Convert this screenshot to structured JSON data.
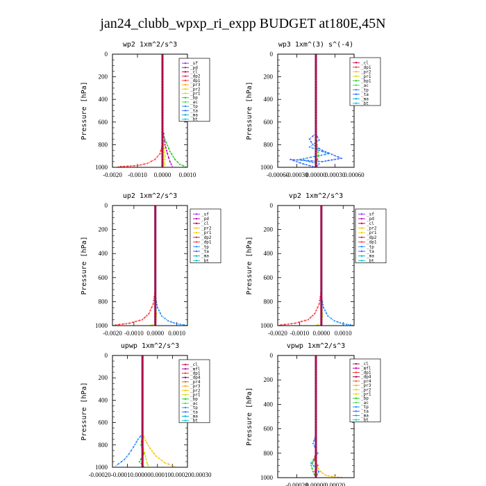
{
  "figure_title": "jan24_clubb_wpxp_ri_expp  BUDGET at180E,45N",
  "colors": {
    "_sf": "#9b30ff",
    "_pd": "#c000c0",
    "_cl": "#cc0044",
    "_dp2": "#dd2255",
    "_dp1": "#ff3333",
    "_pr3": "#ffaa00",
    "_pr2": "#ffc000",
    "_pr1": "#dddd00",
    "_bp": "#22cc22",
    "_ac": "#44dd44",
    "_tp": "#1e90ff",
    "_ta": "#3366ff",
    "_ma": "#00aaee",
    "_bt": "#00cccc",
    "_mfl": "#aa00aa",
    "_dp4": "#990033",
    "_pr4": "#ee5533",
    "_bp1": "#33cc33"
  },
  "chart_data": [
    {
      "type": "line",
      "title": "wp2   1xm^2/s^3",
      "ylabel": "Pressure [hPa]",
      "xlim": [
        -0.002,
        0.001
      ],
      "ylim": [
        1000,
        0
      ],
      "xticks": [
        "-0.0020",
        "-0.0010",
        "0.0000",
        "0.0010"
      ],
      "xtick_values": [
        -0.002,
        -0.001,
        0,
        0.001
      ],
      "yticks": [
        "0",
        "200",
        "400",
        "600",
        "800",
        "1000"
      ],
      "legend": [
        "_sf",
        "_pd",
        "_cl",
        "_dp2",
        "_dp1",
        "_pr3",
        "_pr2",
        "_pr1",
        "_bp",
        "_ac",
        "_tp",
        "_ta",
        "_ma",
        "_bt"
      ],
      "series": [
        {
          "name": "_pd",
          "x": [
            5e-05,
            0.0001,
            0.0002,
            0.0003,
            0.0004
          ],
          "y": [
            700,
            800,
            880,
            950,
            995
          ]
        },
        {
          "name": "_dp1",
          "x": [
            0,
            -0.0001,
            -0.0003,
            -0.0006,
            -0.001,
            -0.0018
          ],
          "y": [
            800,
            880,
            930,
            965,
            985,
            995
          ]
        },
        {
          "name": "_bp",
          "x": [
            0,
            0.00015,
            0.0003,
            0.0005,
            0.0007,
            0.00095
          ],
          "y": [
            700,
            780,
            860,
            930,
            975,
            995
          ]
        },
        {
          "name": "_pr1",
          "x": [
            0,
            5e-05,
            0.0001,
            8e-05,
            0.0001
          ],
          "y": [
            700,
            800,
            900,
            960,
            995
          ]
        },
        {
          "name": "_cl",
          "x": [
            0,
            0,
            0,
            0,
            0,
            0
          ],
          "y": [
            0,
            200,
            400,
            600,
            800,
            1000
          ]
        }
      ]
    },
    {
      "type": "line",
      "title": "wp3   1xm^(3) s^(-4)",
      "ylabel": "Pressure [hPa]",
      "xlim": [
        -0.0006,
        0.0006
      ],
      "ylim": [
        1000,
        0
      ],
      "xticks": [
        "-0.00060",
        "-0.00030",
        "0.00000",
        "0.00030",
        "0.00060"
      ],
      "xtick_values": [
        -0.0006,
        -0.0003,
        0,
        0.0003,
        0.0006
      ],
      "yticks": [
        "0",
        "200",
        "400",
        "600",
        "800",
        "1000"
      ],
      "legend": [
        "_cl",
        "_dp1",
        "_pr2",
        "_pr1",
        "_bp1",
        "_ac",
        "_tp",
        "_ta",
        "_ma",
        "_bt"
      ],
      "series": [
        {
          "name": "_ta",
          "x": [
            0,
            -0.0001,
            -5e-05,
            0.0001,
            0.0004,
            0.0001,
            -0.0004,
            -0.0002,
            0
          ],
          "y": [
            700,
            750,
            800,
            850,
            920,
            950,
            930,
            970,
            1000
          ]
        },
        {
          "name": "_tp",
          "x": [
            0,
            5e-05,
            -0.0001,
            0.0002,
            -0.00025,
            5e-05,
            0
          ],
          "y": [
            700,
            760,
            820,
            880,
            930,
            970,
            1000
          ]
        },
        {
          "name": "_dp1",
          "x": [
            0,
            0,
            0,
            0,
            0,
            0
          ],
          "y": [
            0,
            200,
            400,
            600,
            800,
            1000
          ]
        },
        {
          "name": "_bp1",
          "x": [
            0,
            2e-05,
            4e-05,
            1e-05,
            0
          ],
          "y": [
            700,
            800,
            900,
            960,
            1000
          ]
        }
      ]
    },
    {
      "type": "line",
      "title": "up2   1xm^2/s^3",
      "ylabel": "Pressure [hPa]",
      "xlim": [
        -0.002,
        0.0015
      ],
      "ylim": [
        1000,
        0
      ],
      "xticks": [
        "-0.0020",
        "-0.0010",
        "0.0000",
        "0.0010"
      ],
      "xtick_values": [
        -0.002,
        -0.001,
        0,
        0.001
      ],
      "yticks": [
        "0",
        "200",
        "400",
        "600",
        "800",
        "1000"
      ],
      "legend": [
        "_sf",
        "_pd",
        "_cl",
        "_pr2",
        "_pr1",
        "_dp2",
        "_dp1",
        "_tp",
        "_ta",
        "_ma",
        "_bt"
      ],
      "series": [
        {
          "name": "_dp1",
          "x": [
            0,
            -0.0001,
            -0.0003,
            -0.0006,
            -0.0012,
            -0.002
          ],
          "y": [
            700,
            820,
            900,
            950,
            980,
            998
          ]
        },
        {
          "name": "_tp",
          "x": [
            0,
            0.0001,
            0.0003,
            0.0006,
            0.001,
            0.0015
          ],
          "y": [
            750,
            850,
            920,
            960,
            985,
            998
          ]
        },
        {
          "name": "_pr1",
          "x": [
            0,
            5e-05,
            3e-05,
            0,
            -0.0003
          ],
          "y": [
            800,
            900,
            950,
            990,
            998
          ]
        },
        {
          "name": "_cl",
          "x": [
            0,
            0,
            0,
            0,
            0,
            0
          ],
          "y": [
            0,
            200,
            400,
            600,
            800,
            1000
          ]
        }
      ]
    },
    {
      "type": "line",
      "title": "vp2   1xm^2/s^3",
      "ylabel": "Pressure [hPa]",
      "xlim": [
        -0.002,
        0.0015
      ],
      "ylim": [
        1000,
        0
      ],
      "xticks": [
        "-0.0020",
        "-0.0010",
        "0.0000",
        "0.0010"
      ],
      "xtick_values": [
        -0.002,
        -0.001,
        0,
        0.001
      ],
      "yticks": [
        "0",
        "200",
        "400",
        "600",
        "800",
        "1000"
      ],
      "legend": [
        "_sf",
        "_pd",
        "_cl",
        "_pr2",
        "_pr1",
        "_dp2",
        "_dp1",
        "_tp",
        "_ta",
        "_ma",
        "_bt"
      ],
      "series": [
        {
          "name": "_dp1",
          "x": [
            0,
            -0.0001,
            -0.0003,
            -0.0006,
            -0.0012,
            -0.002
          ],
          "y": [
            700,
            820,
            900,
            950,
            980,
            998
          ]
        },
        {
          "name": "_tp",
          "x": [
            0,
            0.0001,
            0.0003,
            0.0006,
            0.001,
            0.0015
          ],
          "y": [
            750,
            850,
            920,
            960,
            985,
            998
          ]
        },
        {
          "name": "_pr1",
          "x": [
            0,
            5e-05,
            3e-05,
            0,
            -0.0003
          ],
          "y": [
            800,
            900,
            950,
            990,
            998
          ]
        },
        {
          "name": "_cl",
          "x": [
            0,
            0,
            0,
            0,
            0,
            0
          ],
          "y": [
            0,
            200,
            400,
            600,
            800,
            1000
          ]
        }
      ]
    },
    {
      "type": "line",
      "title": "upwp   1xm^2/s^3",
      "ylabel": "Pressure [hPa]",
      "xlim": [
        -0.0002,
        0.0003
      ],
      "ylim": [
        1000,
        0
      ],
      "xticks": [
        "-0.0002",
        "-0.0001",
        "0.0000",
        "0.0001",
        "0.0002",
        "0.0003"
      ],
      "xtick_values": [
        -0.0002,
        -0.0001,
        0,
        0.0001,
        0.0002,
        0.0003
      ],
      "xtick_text_joined": "-0.00020-0.00010.000000.000100.000200.00030",
      "yticks": [
        "0",
        "200",
        "400",
        "600",
        "800",
        "1000"
      ],
      "legend": [
        "_cl",
        "_mfl",
        "_dp1",
        "_dp4",
        "_pr4",
        "_pr3",
        "_pr2",
        "_pr1",
        "_bp",
        "_ac",
        "_tp",
        "_ta",
        "_ma",
        "_bt"
      ],
      "series": [
        {
          "name": "_tp",
          "x": [
            0,
            -3e-05,
            -6e-05,
            -9e-05,
            -0.00012,
            -0.00018
          ],
          "y": [
            700,
            750,
            820,
            880,
            930,
            990
          ]
        },
        {
          "name": "_pr2",
          "x": [
            0,
            2e-05,
            5e-05,
            9e-05,
            0.00015,
            0.00022
          ],
          "y": [
            700,
            760,
            830,
            900,
            960,
            995
          ]
        },
        {
          "name": "_bp",
          "x": [
            0,
            -1e-05,
            1e-05,
            -2e-05,
            1e-05
          ],
          "y": [
            700,
            800,
            880,
            950,
            995
          ]
        },
        {
          "name": "_pr1",
          "x": [
            0,
            2e-05,
            3e-05,
            4e-05
          ],
          "y": [
            800,
            900,
            960,
            995
          ]
        },
        {
          "name": "_cl",
          "x": [
            0,
            0,
            0,
            0,
            0,
            0
          ],
          "y": [
            0,
            200,
            400,
            600,
            800,
            1000
          ]
        }
      ]
    },
    {
      "type": "line",
      "title": "vpwp   1xm^2/s^3",
      "ylabel": "Pressure [hPa]",
      "xlim": [
        -0.0004,
        0.0004
      ],
      "ylim": [
        1000,
        0
      ],
      "xticks": [
        "-0.00020",
        "0.00000",
        "0.00020"
      ],
      "xtick_values": [
        -0.0002,
        0,
        0.0002
      ],
      "yticks": [
        "0",
        "200",
        "400",
        "600",
        "800",
        "1000"
      ],
      "legend": [
        "_cl",
        "_mfl",
        "_dp1",
        "_dp4",
        "_pr4",
        "_pr3",
        "_pr2",
        "_pr1",
        "_bp",
        "_ac",
        "_tp",
        "_ta",
        "_ma",
        "_bt"
      ],
      "series": [
        {
          "name": "_tp",
          "x": [
            0,
            -3e-05,
            2e-05,
            -5e-05,
            3e-05,
            0
          ],
          "y": [
            650,
            720,
            800,
            880,
            950,
            1000
          ]
        },
        {
          "name": "_bp",
          "x": [
            0,
            -2e-05,
            -5e-05,
            -3e-05,
            0
          ],
          "y": [
            800,
            860,
            900,
            950,
            1000
          ]
        },
        {
          "name": "_dp1",
          "x": [
            0,
            -2e-05,
            2e-05,
            -1e-05,
            0
          ],
          "y": [
            800,
            850,
            900,
            950,
            1000
          ]
        },
        {
          "name": "_pr2",
          "x": [
            0,
            5e-05,
            0.0001,
            0.0002,
            0.0003
          ],
          "y": [
            900,
            950,
            980,
            995,
            1000
          ]
        },
        {
          "name": "_cl",
          "x": [
            0,
            0,
            0,
            0,
            0,
            0
          ],
          "y": [
            0,
            200,
            400,
            600,
            800,
            1000
          ]
        }
      ]
    }
  ]
}
